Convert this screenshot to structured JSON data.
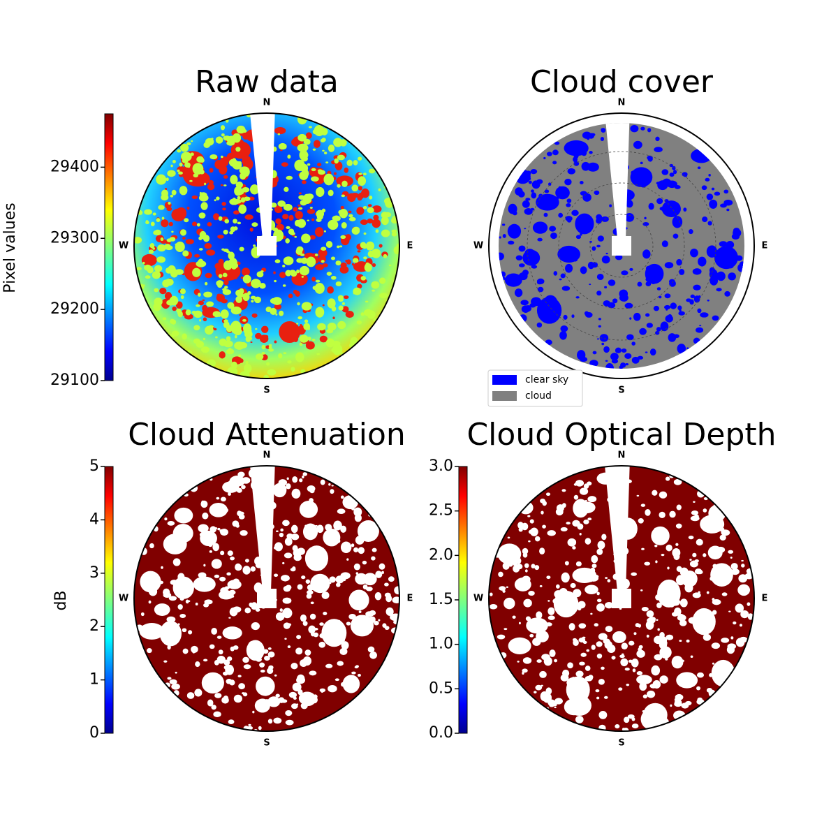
{
  "chart_data": [
    {
      "type": "colormap-image",
      "title": "Raw data",
      "compass": [
        "N",
        "E",
        "S",
        "W"
      ],
      "colorbar": {
        "label": "Pixel values",
        "colormap": "jet",
        "lim": [
          29100,
          29475
        ],
        "ticks": [
          29100,
          29200,
          29300,
          29400
        ]
      }
    },
    {
      "type": "classification",
      "title": "Cloud cover",
      "compass": [
        "N",
        "E",
        "S",
        "W"
      ],
      "legend": [
        {
          "name": "clear sky",
          "color": "#0000ff"
        },
        {
          "name": "cloud",
          "color": "#808080"
        }
      ]
    },
    {
      "type": "colormap-image",
      "title": "Cloud Attenuation",
      "compass": [
        "N",
        "E",
        "S",
        "W"
      ],
      "fill": "#800000",
      "colorbar": {
        "label": "dB",
        "colormap": "jet",
        "lim": [
          0,
          5
        ],
        "ticks": [
          0,
          1,
          2,
          3,
          4,
          5
        ]
      }
    },
    {
      "type": "colormap-image",
      "title": "Cloud Optical Depth",
      "compass": [
        "N",
        "E",
        "S",
        "W"
      ],
      "fill": "#800000",
      "colorbar": {
        "colormap": "jet",
        "lim": [
          0,
          3
        ],
        "ticks": [
          {
            "value": 0,
            "label": "0.0"
          },
          0.5,
          {
            "value": 1,
            "label": "1.0"
          },
          1.5,
          {
            "value": 2,
            "label": "2.0"
          },
          2.5,
          {
            "value": 3,
            "label": "3.0"
          }
        ]
      }
    }
  ]
}
